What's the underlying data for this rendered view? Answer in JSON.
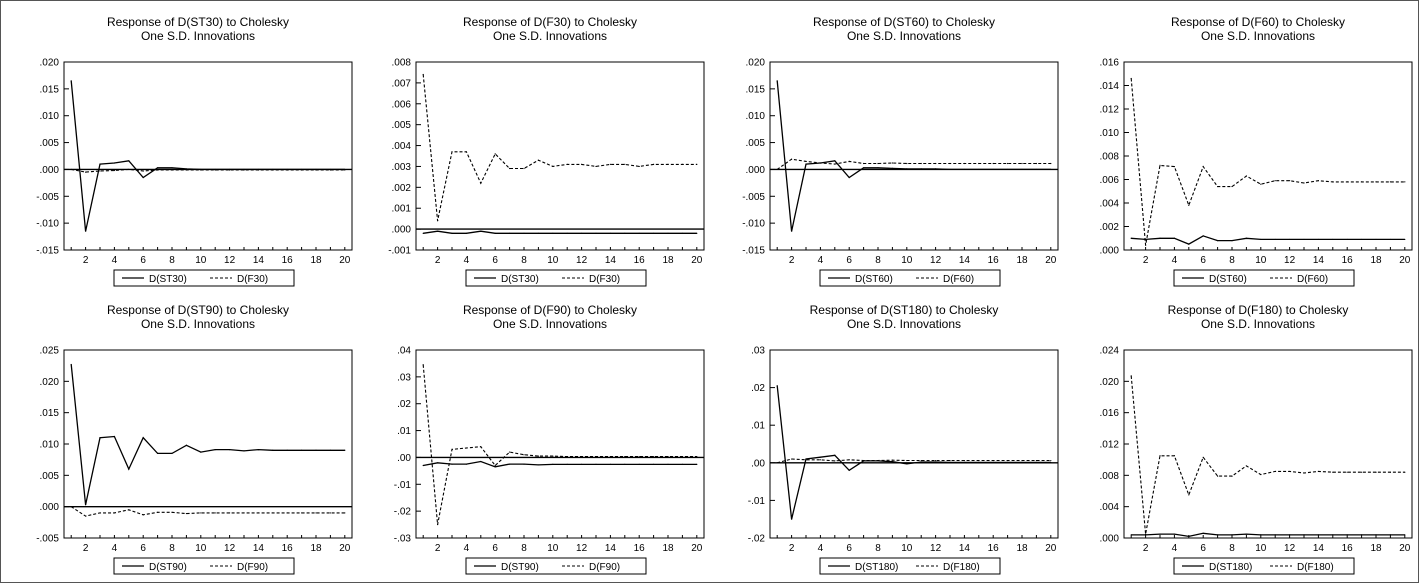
{
  "chart_data": [
    {
      "type": "line",
      "title": "Response of D(ST30) to Cholesky",
      "subtitle": "One S.D. Innovations",
      "x": [
        1,
        2,
        3,
        4,
        5,
        6,
        7,
        8,
        9,
        10,
        11,
        12,
        13,
        14,
        15,
        16,
        17,
        18,
        19,
        20
      ],
      "x_ticks": [
        2,
        4,
        6,
        8,
        10,
        12,
        14,
        16,
        18,
        20
      ],
      "ylim": [
        -0.015,
        0.02
      ],
      "y_ticks": [
        -0.015,
        -0.01,
        -0.005,
        0.0,
        0.005,
        0.01,
        0.015,
        0.02
      ],
      "y_tick_labels": [
        "-.015",
        "-.010",
        "-.005",
        ".000",
        ".005",
        ".010",
        ".015",
        ".020"
      ],
      "legend_position": "bottom",
      "series": [
        {
          "name": "D(ST30)",
          "style": "solid",
          "values": [
            0.0165,
            -0.0115,
            0.001,
            0.0012,
            0.0016,
            -0.0015,
            0.0003,
            0.0003,
            0.0001,
            0.0,
            0.0,
            0.0,
            0.0,
            0.0,
            0.0,
            0.0,
            0.0,
            0.0,
            0.0,
            0.0
          ]
        },
        {
          "name": "D(F30)",
          "style": "dashed",
          "values": [
            0.0,
            -0.0005,
            -0.0003,
            -0.0002,
            0.0,
            -0.0003,
            -0.0001,
            -0.0001,
            -0.0001,
            -0.0001,
            -0.0001,
            -0.0001,
            -0.0001,
            -0.0001,
            -0.0001,
            -0.0001,
            -0.0001,
            -0.0001,
            -0.0001,
            -0.0001
          ]
        }
      ]
    },
    {
      "type": "line",
      "title": "Response of D(F30) to Cholesky",
      "subtitle": "One S.D. Innovations",
      "x": [
        1,
        2,
        3,
        4,
        5,
        6,
        7,
        8,
        9,
        10,
        11,
        12,
        13,
        14,
        15,
        16,
        17,
        18,
        19,
        20
      ],
      "x_ticks": [
        2,
        4,
        6,
        8,
        10,
        12,
        14,
        16,
        18,
        20
      ],
      "ylim": [
        -0.001,
        0.008
      ],
      "y_ticks": [
        -0.001,
        0.0,
        0.001,
        0.002,
        0.003,
        0.004,
        0.005,
        0.006,
        0.007,
        0.008
      ],
      "y_tick_labels": [
        "-.001",
        ".000",
        ".001",
        ".002",
        ".003",
        ".004",
        ".005",
        ".006",
        ".007",
        ".008"
      ],
      "legend_position": "bottom",
      "series": [
        {
          "name": "D(ST30)",
          "style": "solid",
          "values": [
            -0.0002,
            -0.0001,
            -0.0002,
            -0.0002,
            -0.0001,
            -0.0002,
            -0.0002,
            -0.0002,
            -0.0002,
            -0.0002,
            -0.0002,
            -0.0002,
            -0.0002,
            -0.0002,
            -0.0002,
            -0.0002,
            -0.0002,
            -0.0002,
            -0.0002,
            -0.0002
          ]
        },
        {
          "name": "D(F30)",
          "style": "dashed",
          "values": [
            0.0074,
            0.0004,
            0.0037,
            0.0037,
            0.0022,
            0.0036,
            0.0029,
            0.0029,
            0.0033,
            0.003,
            0.0031,
            0.0031,
            0.003,
            0.0031,
            0.0031,
            0.003,
            0.0031,
            0.0031,
            0.0031,
            0.0031
          ]
        }
      ]
    },
    {
      "type": "line",
      "title": "Response of D(ST60) to Cholesky",
      "subtitle": "One S.D. Innovations",
      "x": [
        1,
        2,
        3,
        4,
        5,
        6,
        7,
        8,
        9,
        10,
        11,
        12,
        13,
        14,
        15,
        16,
        17,
        18,
        19,
        20
      ],
      "x_ticks": [
        2,
        4,
        6,
        8,
        10,
        12,
        14,
        16,
        18,
        20
      ],
      "ylim": [
        -0.015,
        0.02
      ],
      "y_ticks": [
        -0.015,
        -0.01,
        -0.005,
        0.0,
        0.005,
        0.01,
        0.015,
        0.02
      ],
      "y_tick_labels": [
        "-.015",
        "-.010",
        "-.005",
        ".000",
        ".005",
        ".010",
        ".015",
        ".020"
      ],
      "legend_position": "bottom",
      "series": [
        {
          "name": "D(ST60)",
          "style": "solid",
          "values": [
            0.0165,
            -0.0115,
            0.001,
            0.0012,
            0.0016,
            -0.0015,
            0.0003,
            0.0003,
            0.0002,
            0.0001,
            0.0001,
            0.0001,
            0.0,
            0.0,
            0.0,
            0.0,
            0.0,
            0.0,
            0.0,
            0.0
          ]
        },
        {
          "name": "D(F60)",
          "style": "dashed",
          "values": [
            0.0,
            0.0019,
            0.0015,
            0.0012,
            0.001,
            0.0015,
            0.0011,
            0.0011,
            0.0012,
            0.0011,
            0.0011,
            0.0011,
            0.0011,
            0.0011,
            0.0011,
            0.0011,
            0.0011,
            0.0011,
            0.0011,
            0.0011
          ]
        }
      ]
    },
    {
      "type": "line",
      "title": "Response of D(F60) to Cholesky",
      "subtitle": "One S.D. Innovations",
      "x": [
        1,
        2,
        3,
        4,
        5,
        6,
        7,
        8,
        9,
        10,
        11,
        12,
        13,
        14,
        15,
        16,
        17,
        18,
        19,
        20
      ],
      "x_ticks": [
        2,
        4,
        6,
        8,
        10,
        12,
        14,
        16,
        18,
        20
      ],
      "ylim": [
        0.0,
        0.016
      ],
      "y_ticks": [
        0.0,
        0.002,
        0.004,
        0.006,
        0.008,
        0.01,
        0.012,
        0.014,
        0.016
      ],
      "y_tick_labels": [
        ".000",
        ".002",
        ".004",
        ".006",
        ".008",
        ".010",
        ".012",
        ".014",
        ".016"
      ],
      "legend_position": "bottom",
      "series": [
        {
          "name": "D(ST60)",
          "style": "solid",
          "values": [
            0.001,
            0.0009,
            0.001,
            0.001,
            0.0005,
            0.0012,
            0.0008,
            0.0008,
            0.001,
            0.0009,
            0.0009,
            0.0009,
            0.0009,
            0.0009,
            0.0009,
            0.0009,
            0.0009,
            0.0009,
            0.0009,
            0.0009
          ]
        },
        {
          "name": "D(F60)",
          "style": "dashed",
          "values": [
            0.0146,
            0.0004,
            0.0072,
            0.0071,
            0.0038,
            0.0071,
            0.0054,
            0.0054,
            0.0063,
            0.0056,
            0.0059,
            0.0059,
            0.0057,
            0.0059,
            0.0058,
            0.0058,
            0.0058,
            0.0058,
            0.0058,
            0.0058
          ]
        }
      ]
    },
    {
      "type": "line",
      "title": "Response of D(ST90) to Cholesky",
      "subtitle": "One S.D. Innovations",
      "x": [
        1,
        2,
        3,
        4,
        5,
        6,
        7,
        8,
        9,
        10,
        11,
        12,
        13,
        14,
        15,
        16,
        17,
        18,
        19,
        20
      ],
      "x_ticks": [
        2,
        4,
        6,
        8,
        10,
        12,
        14,
        16,
        18,
        20
      ],
      "ylim": [
        -0.005,
        0.025
      ],
      "y_ticks": [
        -0.005,
        0.0,
        0.005,
        0.01,
        0.015,
        0.02,
        0.025
      ],
      "y_tick_labels": [
        "-.005",
        ".000",
        ".005",
        ".010",
        ".015",
        ".020",
        ".025"
      ],
      "legend_position": "bottom",
      "series": [
        {
          "name": "D(ST90)",
          "style": "solid",
          "values": [
            0.0227,
            0.0003,
            0.011,
            0.0112,
            0.006,
            0.011,
            0.0085,
            0.0085,
            0.0098,
            0.0087,
            0.0091,
            0.0091,
            0.0089,
            0.0091,
            0.009,
            0.009,
            0.009,
            0.009,
            0.009,
            0.009
          ]
        },
        {
          "name": "D(F90)",
          "style": "dashed",
          "values": [
            0.0,
            -0.0015,
            -0.001,
            -0.001,
            -0.0005,
            -0.0013,
            -0.0009,
            -0.0009,
            -0.0011,
            -0.001,
            -0.001,
            -0.001,
            -0.001,
            -0.001,
            -0.001,
            -0.001,
            -0.001,
            -0.001,
            -0.001,
            -0.001
          ]
        }
      ]
    },
    {
      "type": "line",
      "title": "Response of D(F90) to Cholesky",
      "subtitle": "One S.D. Innovations",
      "x": [
        1,
        2,
        3,
        4,
        5,
        6,
        7,
        8,
        9,
        10,
        11,
        12,
        13,
        14,
        15,
        16,
        17,
        18,
        19,
        20
      ],
      "x_ticks": [
        2,
        4,
        6,
        8,
        10,
        12,
        14,
        16,
        18,
        20
      ],
      "ylim": [
        -0.03,
        0.04
      ],
      "y_ticks": [
        -0.03,
        -0.02,
        -0.01,
        0.0,
        0.01,
        0.02,
        0.03,
        0.04
      ],
      "y_tick_labels": [
        "-.03",
        "-.02",
        "-.01",
        ".00",
        ".01",
        ".02",
        ".03",
        ".04"
      ],
      "legend_position": "bottom",
      "series": [
        {
          "name": "D(ST90)",
          "style": "solid",
          "values": [
            -0.003,
            -0.002,
            -0.0025,
            -0.0025,
            -0.0015,
            -0.0035,
            -0.0025,
            -0.0025,
            -0.0028,
            -0.0026,
            -0.0026,
            -0.0026,
            -0.0026,
            -0.0026,
            -0.0026,
            -0.0026,
            -0.0026,
            -0.0026,
            -0.0026,
            -0.0026
          ]
        },
        {
          "name": "D(F90)",
          "style": "dashed",
          "values": [
            0.0345,
            -0.025,
            0.003,
            0.0035,
            0.004,
            -0.003,
            0.002,
            0.001,
            0.0005,
            0.0005,
            0.0003,
            0.0003,
            0.0003,
            0.0003,
            0.0003,
            0.0003,
            0.0003,
            0.0003,
            0.0003,
            0.0003
          ]
        }
      ]
    },
    {
      "type": "line",
      "title": "Response of D(ST180) to Cholesky",
      "subtitle": "One S.D. Innovations",
      "x": [
        1,
        2,
        3,
        4,
        5,
        6,
        7,
        8,
        9,
        10,
        11,
        12,
        13,
        14,
        15,
        16,
        17,
        18,
        19,
        20
      ],
      "x_ticks": [
        2,
        4,
        6,
        8,
        10,
        12,
        14,
        16,
        18,
        20
      ],
      "ylim": [
        -0.02,
        0.03
      ],
      "y_ticks": [
        -0.02,
        -0.01,
        0.0,
        0.01,
        0.02,
        0.03
      ],
      "y_tick_labels": [
        "-.02",
        "-.01",
        ".00",
        ".01",
        ".02",
        ".03"
      ],
      "legend_position": "bottom",
      "series": [
        {
          "name": "D(ST180)",
          "style": "solid",
          "values": [
            0.0205,
            -0.015,
            0.001,
            0.0015,
            0.002,
            -0.002,
            0.0005,
            0.0005,
            0.0003,
            -0.0003,
            0.0002,
            0.0002,
            0.0001,
            0.0001,
            0.0001,
            0.0001,
            0.0001,
            0.0001,
            0.0001,
            0.0001
          ]
        },
        {
          "name": "D(F180)",
          "style": "dashed",
          "values": [
            0.0,
            0.001,
            0.0008,
            0.0008,
            0.0005,
            0.0008,
            0.0006,
            0.0006,
            0.0007,
            0.0006,
            0.0006,
            0.0006,
            0.0006,
            0.0006,
            0.0006,
            0.0006,
            0.0006,
            0.0006,
            0.0006,
            0.0006
          ]
        }
      ]
    },
    {
      "type": "line",
      "title": "Response of D(F180) to Cholesky",
      "subtitle": "One S.D. Innovations",
      "x": [
        1,
        2,
        3,
        4,
        5,
        6,
        7,
        8,
        9,
        10,
        11,
        12,
        13,
        14,
        15,
        16,
        17,
        18,
        19,
        20
      ],
      "x_ticks": [
        2,
        4,
        6,
        8,
        10,
        12,
        14,
        16,
        18,
        20
      ],
      "ylim": [
        0.0,
        0.024
      ],
      "y_ticks": [
        0.0,
        0.004,
        0.008,
        0.012,
        0.016,
        0.02,
        0.024
      ],
      "y_tick_labels": [
        ".000",
        ".004",
        ".008",
        ".012",
        ".016",
        ".020",
        ".024"
      ],
      "legend_position": "bottom",
      "series": [
        {
          "name": "D(ST180)",
          "style": "solid",
          "values": [
            0.0004,
            0.0004,
            0.0005,
            0.0005,
            0.0002,
            0.0006,
            0.0004,
            0.0004,
            0.0005,
            0.0004,
            0.0004,
            0.0004,
            0.0004,
            0.0004,
            0.0004,
            0.0004,
            0.0004,
            0.0004,
            0.0004,
            0.0004
          ]
        },
        {
          "name": "D(F180)",
          "style": "dashed",
          "values": [
            0.0207,
            0.0005,
            0.0105,
            0.0105,
            0.0055,
            0.0103,
            0.0079,
            0.0079,
            0.0092,
            0.0081,
            0.0085,
            0.0085,
            0.0083,
            0.0085,
            0.0084,
            0.0084,
            0.0084,
            0.0084,
            0.0084,
            0.0084
          ]
        }
      ]
    }
  ]
}
